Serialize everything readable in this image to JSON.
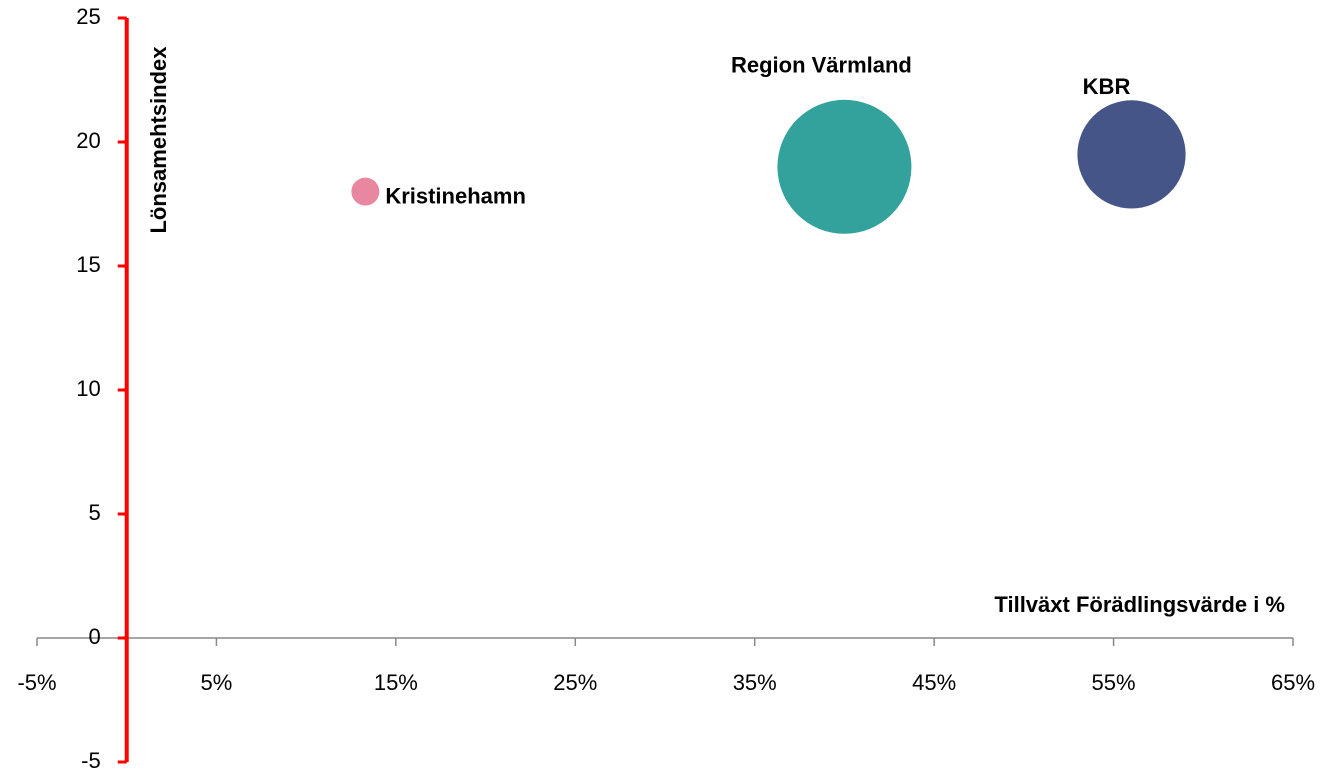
{
  "chart_data": {
    "type": "bubble",
    "xlabel": "Tillväxt Förädlingsvärde i %",
    "ylabel": "Lönsamehtsindex",
    "xlim": [
      -5,
      65
    ],
    "xticks": [
      {
        "value": -5,
        "label": "-5%"
      },
      {
        "value": 5,
        "label": "5%"
      },
      {
        "value": 15,
        "label": "15%"
      },
      {
        "value": 25,
        "label": "25%"
      },
      {
        "value": 35,
        "label": "35%"
      },
      {
        "value": 45,
        "label": "45%"
      },
      {
        "value": 55,
        "label": "55%"
      },
      {
        "value": 65,
        "label": "65%"
      }
    ],
    "ylim": [
      -5,
      25
    ],
    "yticks": [
      -5,
      0,
      5,
      10,
      15,
      20,
      25
    ],
    "series": [
      {
        "name": "Kristinehamn",
        "color": "#e8879f",
        "x": [
          13.3
        ],
        "values": [
          18
        ],
        "sizes": [
          4
        ]
      },
      {
        "name": "Region Värmland",
        "color": "#33a19c",
        "x": [
          40
        ],
        "values": [
          19
        ],
        "sizes": [
          92
        ]
      },
      {
        "name": "KBR",
        "color": "#455588",
        "x": [
          56
        ],
        "values": [
          19.5
        ],
        "sizes": [
          60
        ]
      }
    ]
  }
}
